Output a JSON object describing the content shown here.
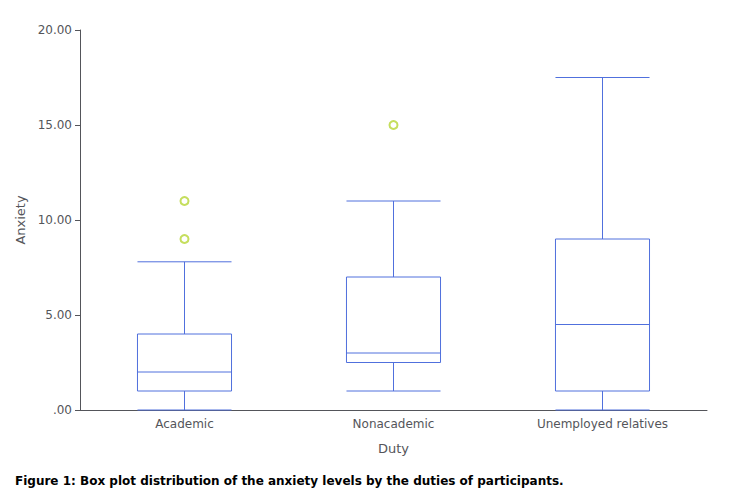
{
  "chart_data": {
    "type": "box",
    "caption": "Figure 1: Box plot distribution of the anxiety levels by the duties of participants.",
    "xlabel": "Duty",
    "ylabel": "Anxiety",
    "categories": [
      "Academic",
      "Nonacademic",
      "Unemployed relatives"
    ],
    "whislo": [
      0.0,
      1.0,
      0.0
    ],
    "q1": [
      1.0,
      2.5,
      1.0
    ],
    "med": [
      2.0,
      3.0,
      4.5
    ],
    "q3": [
      4.0,
      7.0,
      9.0
    ],
    "whishi": [
      7.8,
      11.0,
      17.5
    ],
    "fliers": [
      [
        9.0,
        11.0
      ],
      [
        15.0
      ],
      []
    ],
    "ylim": [
      0.0,
      20.0
    ],
    "yticks": [
      {
        "value": 0.0,
        "label": ".00"
      },
      {
        "value": 5.0,
        "label": "5.00"
      },
      {
        "value": 10.0,
        "label": "10.00"
      },
      {
        "value": 15.0,
        "label": "15.00"
      },
      {
        "value": 20.0,
        "label": "20.00"
      }
    ],
    "grid": false
  }
}
